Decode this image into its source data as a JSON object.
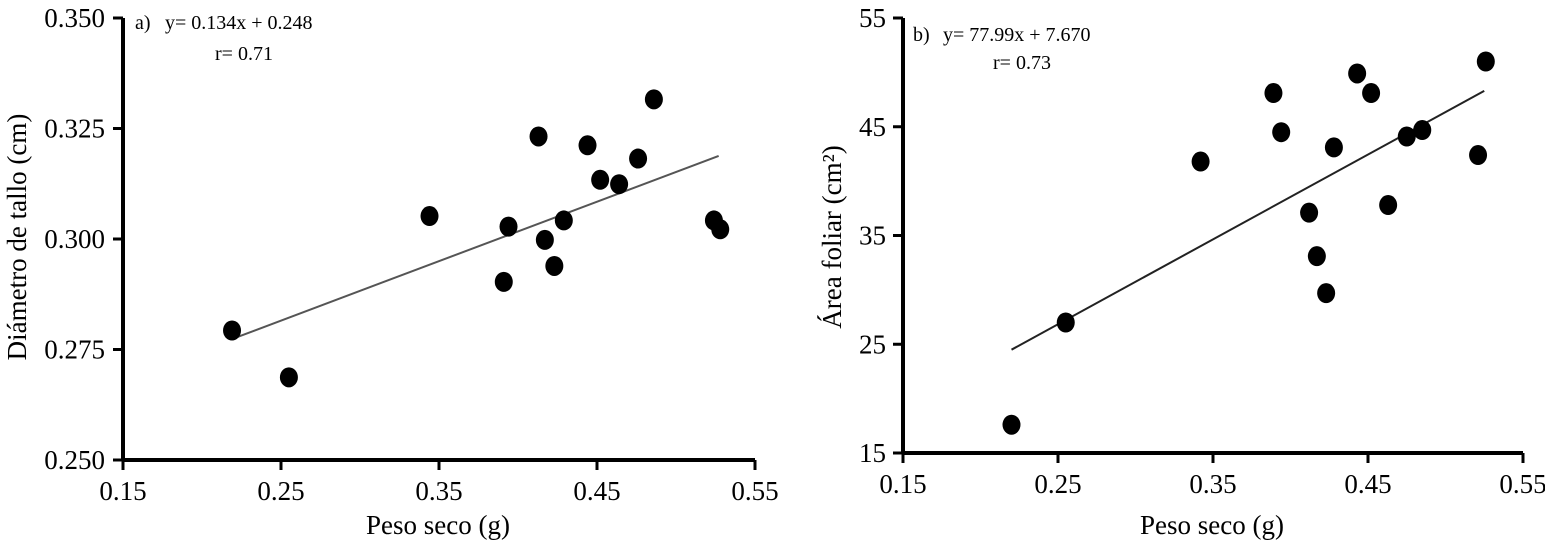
{
  "chart_data": [
    {
      "type": "scatter",
      "panel_label": "a)",
      "equation": "y= 0.134x + 0.248",
      "r": "r= 0.71",
      "xlabel": "Peso seco (g)",
      "ylabel": "Diámetro de tallo (cm)",
      "xlim": [
        0.15,
        0.55
      ],
      "ylim": [
        0.25,
        0.35
      ],
      "xticks": [
        "0.15",
        "0.25",
        "0.35",
        "0.45",
        "0.55"
      ],
      "yticks": [
        "0.250",
        "0.275",
        "0.300",
        "0.325",
        "0.350"
      ],
      "trendline": {
        "x": [
          0.22,
          0.527
        ],
        "y": [
          0.2775,
          0.3188
        ]
      },
      "points": [
        [
          0.219,
          0.2793
        ],
        [
          0.255,
          0.2687
        ],
        [
          0.344,
          0.3052
        ],
        [
          0.391,
          0.2903
        ],
        [
          0.394,
          0.3028
        ],
        [
          0.413,
          0.3232
        ],
        [
          0.417,
          0.2998
        ],
        [
          0.423,
          0.2939
        ],
        [
          0.429,
          0.3042
        ],
        [
          0.444,
          0.3212
        ],
        [
          0.452,
          0.3134
        ],
        [
          0.464,
          0.3124
        ],
        [
          0.476,
          0.3182
        ],
        [
          0.486,
          0.3316
        ],
        [
          0.524,
          0.3042
        ],
        [
          0.528,
          0.3022
        ]
      ],
      "colors": {
        "points": "#000000",
        "trendline": "#555555",
        "axis": "#000000"
      }
    },
    {
      "type": "scatter",
      "panel_label": "b)",
      "equation": "y= 77.99x + 7.670",
      "r": "r= 0.73",
      "xlabel": "Peso seco (g)",
      "ylabel": "Área foliar (cm²)",
      "xlim": [
        0.15,
        0.55
      ],
      "ylim": [
        15,
        55
      ],
      "xticks": [
        "0.15",
        "0.25",
        "0.35",
        "0.45",
        "0.55"
      ],
      "yticks": [
        "15",
        "25",
        "35",
        "45",
        "55"
      ],
      "trendline": {
        "x": [
          0.22,
          0.525
        ],
        "y": [
          24.5,
          48.3
        ]
      },
      "points": [
        [
          0.22,
          17.6
        ],
        [
          0.255,
          27.0
        ],
        [
          0.342,
          41.8
        ],
        [
          0.389,
          48.1
        ],
        [
          0.394,
          44.5
        ],
        [
          0.412,
          37.1
        ],
        [
          0.417,
          33.1
        ],
        [
          0.423,
          29.7
        ],
        [
          0.428,
          43.1
        ],
        [
          0.443,
          49.9
        ],
        [
          0.452,
          48.1
        ],
        [
          0.463,
          37.8
        ],
        [
          0.475,
          44.1
        ],
        [
          0.485,
          44.7
        ],
        [
          0.521,
          42.4
        ],
        [
          0.526,
          51.0
        ]
      ],
      "colors": {
        "points": "#000000",
        "trendline": "#222222",
        "axis": "#000000"
      }
    }
  ]
}
